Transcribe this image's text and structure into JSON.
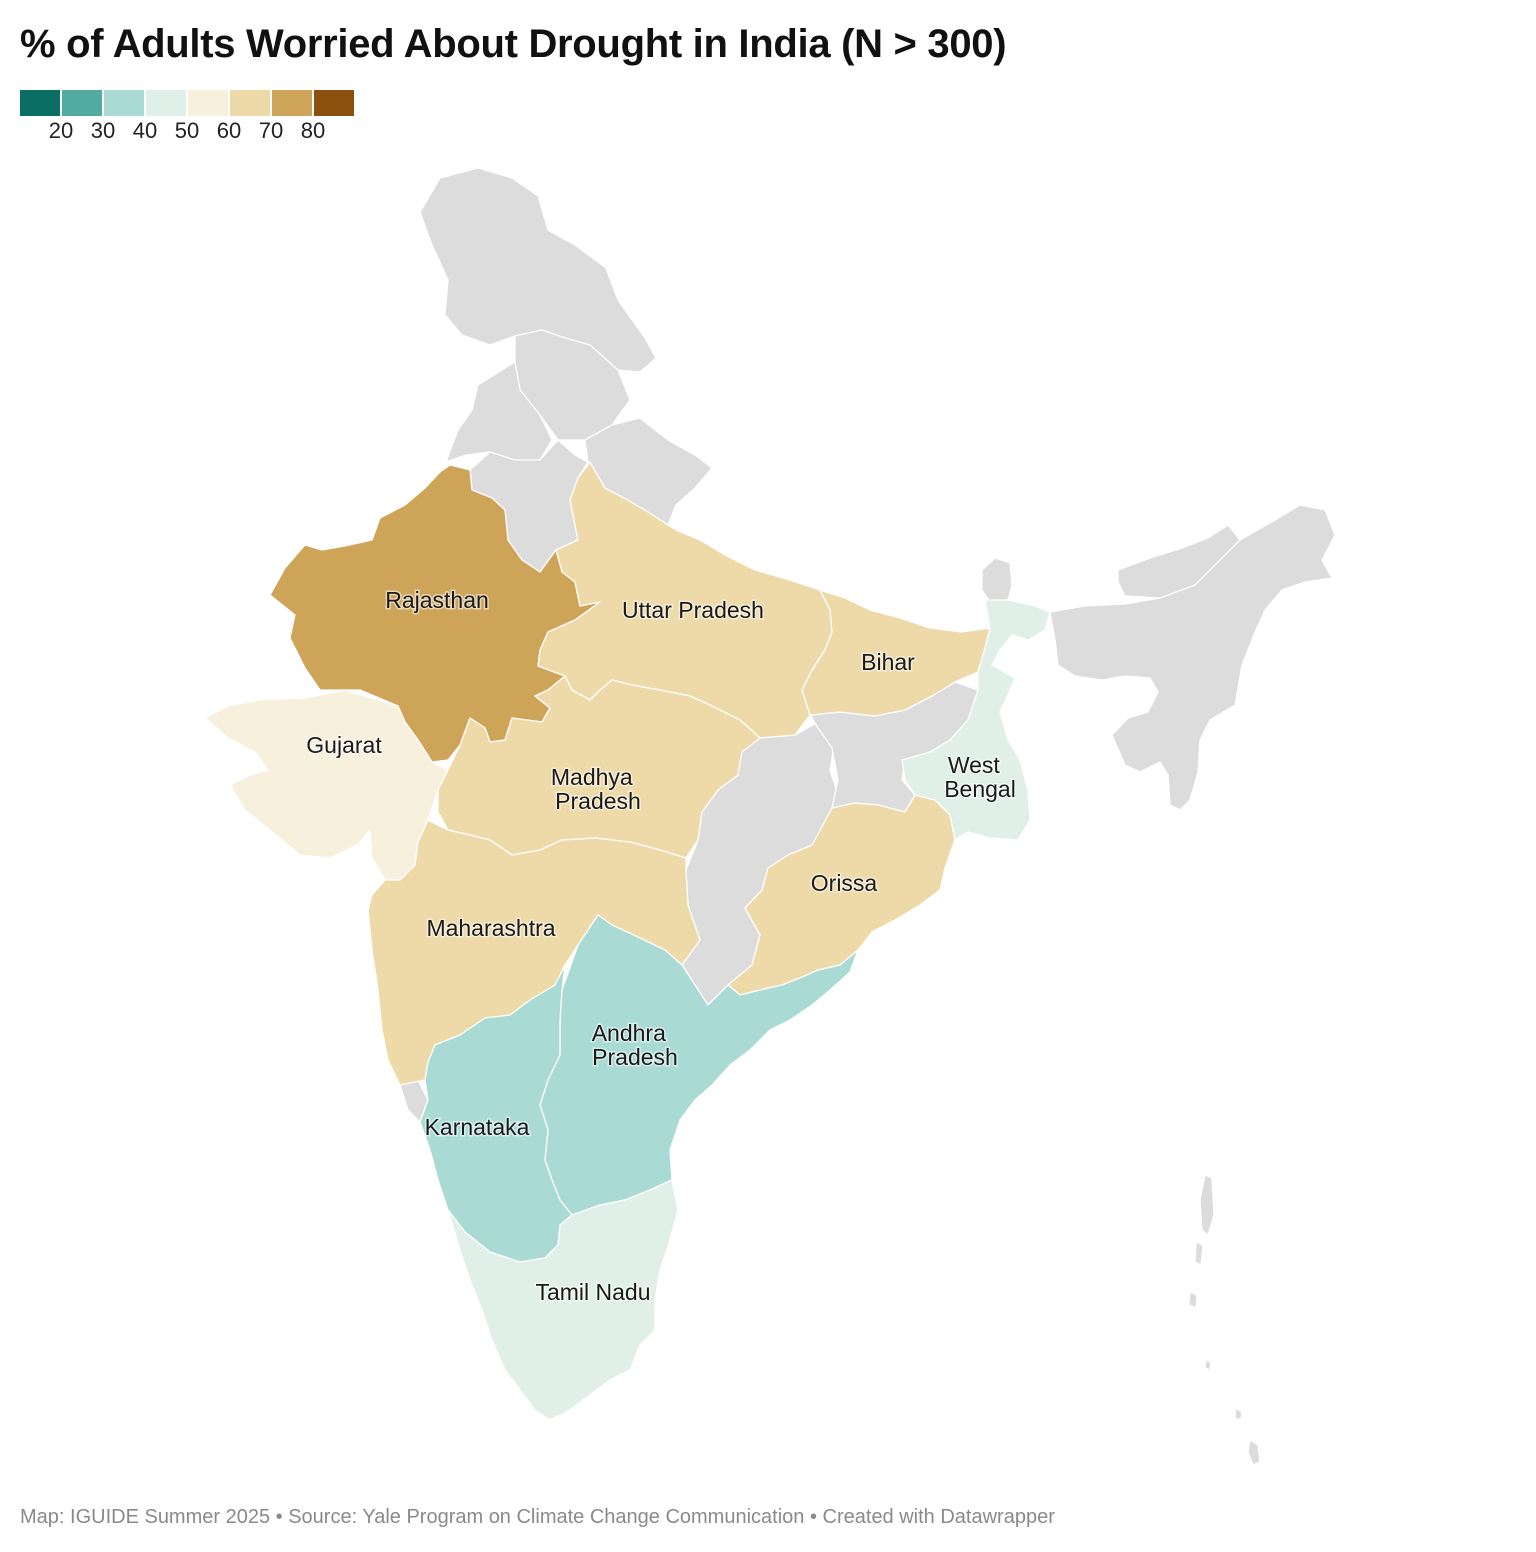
{
  "title": "% of Adults Worried About Drought in India (N > 300)",
  "legend": {
    "colors": [
      "#0b6e64",
      "#52aba0",
      "#a9dad4",
      "#e0f0e8",
      "#f6f0dc",
      "#eed9a8",
      "#cea458",
      "#8c500e"
    ],
    "ticks": [
      "20",
      "30",
      "40",
      "50",
      "60",
      "70",
      "80"
    ]
  },
  "no_data_color": "#dcdcdc",
  "regions": [
    {
      "name": "Rajasthan",
      "label": "Rajasthan",
      "color": "#cea458"
    },
    {
      "name": "Gujarat",
      "label": "Gujarat",
      "color": "#f6f0dc"
    },
    {
      "name": "Uttar Pradesh",
      "label": "Uttar Pradesh",
      "color": "#eed9a8"
    },
    {
      "name": "Madhya Pradesh",
      "label": "Madhya Pradesh",
      "label_lines": [
        "Madhya",
        "Pradesh"
      ],
      "color": "#eed9a8"
    },
    {
      "name": "Maharashtra",
      "label": "Maharashtra",
      "color": "#eed9a8"
    },
    {
      "name": "Bihar",
      "label": "Bihar",
      "color": "#eed9a8"
    },
    {
      "name": "Orissa",
      "label": "Orissa",
      "color": "#eed9a8"
    },
    {
      "name": "West Bengal",
      "label": "West Bengal",
      "label_lines": [
        "West",
        "Bengal"
      ],
      "color": "#e0f0e8"
    },
    {
      "name": "Andhra Pradesh",
      "label": "Andhra Pradesh",
      "label_lines": [
        "Andhra",
        "Pradesh"
      ],
      "color": "#a9dad4"
    },
    {
      "name": "Karnataka",
      "label": "Karnataka",
      "color": "#a9dad4"
    },
    {
      "name": "Tamil Nadu",
      "label": "Tamil Nadu",
      "color": "#e0f0e8"
    }
  ],
  "footer": {
    "credit": "Map: IGUIDE Summer 2025",
    "source": "Source: Yale Program on Climate Change Communication",
    "tool": "Created with Datawrapper",
    "separator": " • "
  }
}
